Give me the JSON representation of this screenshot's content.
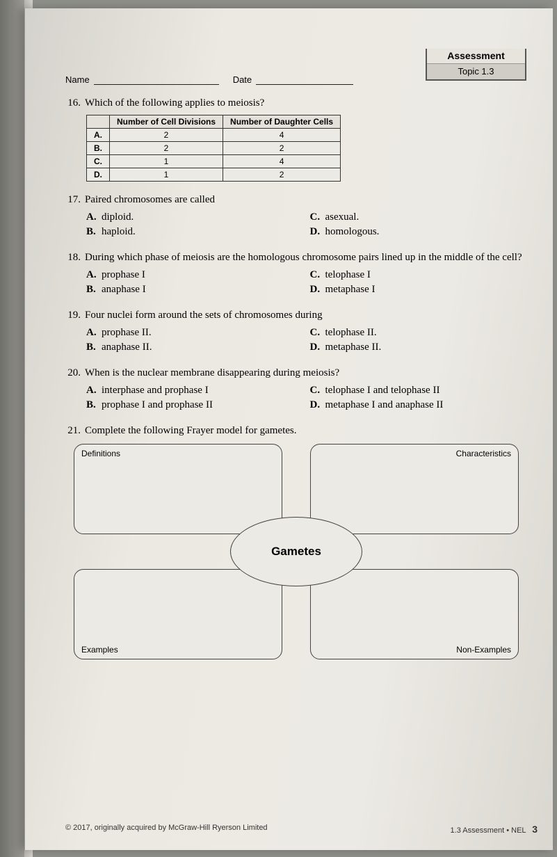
{
  "header": {
    "name_label": "Name",
    "date_label": "Date",
    "assessment_label": "Assessment",
    "topic_label": "Topic 1.3"
  },
  "q16": {
    "num": "16.",
    "stem": "Which of the following applies to meiosis?",
    "col1": "Number of Cell Divisions",
    "col2": "Number of Daughter Cells",
    "rows": [
      {
        "label": "A.",
        "c1": "2",
        "c2": "4"
      },
      {
        "label": "B.",
        "c1": "2",
        "c2": "2"
      },
      {
        "label": "C.",
        "c1": "1",
        "c2": "4"
      },
      {
        "label": "D.",
        "c1": "1",
        "c2": "2"
      }
    ]
  },
  "q17": {
    "num": "17.",
    "stem": "Paired chromosomes are called",
    "a": "diploid.",
    "b": "haploid.",
    "c": "asexual.",
    "d": "homologous."
  },
  "q18": {
    "num": "18.",
    "stem": "During which phase of meiosis are the homologous chromosome pairs lined up in the middle of the cell?",
    "a": "prophase I",
    "b": "anaphase I",
    "c": "telophase I",
    "d": "metaphase I"
  },
  "q19": {
    "num": "19.",
    "stem": "Four nuclei form around the sets of chromosomes during",
    "a": "prophase II.",
    "b": "anaphase II.",
    "c": "telophase II.",
    "d": "metaphase II."
  },
  "q20": {
    "num": "20.",
    "stem": "When is the nuclear membrane disappearing during meiosis?",
    "a": "interphase and prophase I",
    "b": "prophase I and prophase II",
    "c": "telophase I and telophase II",
    "d": "metaphase I and anaphase II"
  },
  "q21": {
    "num": "21.",
    "stem": "Complete the following Frayer model for gametes.",
    "center": "Gametes",
    "tl": "Definitions",
    "tr": "Characteristics",
    "bl": "Examples",
    "br": "Non-Examples"
  },
  "footer": {
    "left": "© 2017, originally acquired by McGraw-Hill Ryerson Limited",
    "right": "1.3 Assessment • NEL",
    "page": "3"
  },
  "letters": {
    "A": "A.",
    "B": "B.",
    "C": "C.",
    "D": "D."
  }
}
